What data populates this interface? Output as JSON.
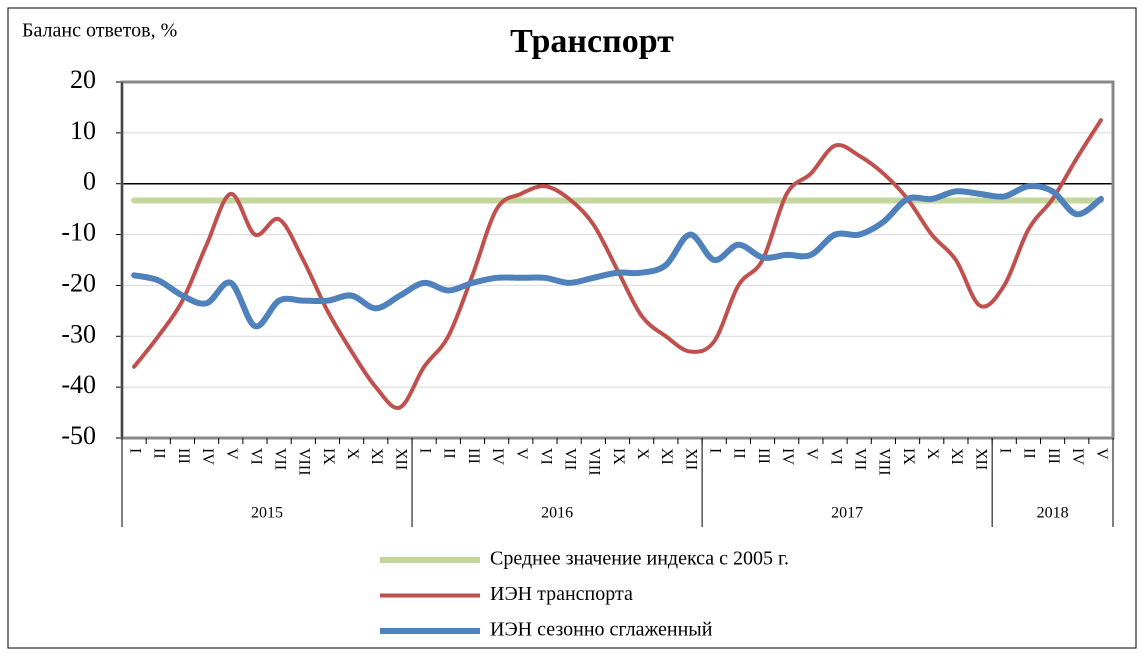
{
  "chart_data": {
    "type": "line",
    "title": "Транспорт",
    "ylabel": "Баланс ответов, %",
    "categories": [
      "I",
      "II",
      "III",
      "IV",
      "V",
      "VI",
      "VII",
      "VIII",
      "IX",
      "X",
      "XI",
      "XII",
      "I",
      "II",
      "III",
      "IV",
      "V",
      "VI",
      "VII",
      "VIII",
      "IX",
      "X",
      "XI",
      "XII",
      "I",
      "II",
      "III",
      "IV",
      "V",
      "VI",
      "VII",
      "VIII",
      "IX",
      "X",
      "XI",
      "XII",
      "I",
      "II",
      "III",
      "IV",
      "V"
    ],
    "years": [
      "2015",
      "2016",
      "2017",
      "2018"
    ],
    "series": [
      {
        "name": "Среднее значение индекса с 2005 г.",
        "color": "#c3d69b",
        "width": 6,
        "values": [
          -3.3,
          -3.3,
          -3.3,
          -3.3,
          -3.3,
          -3.3,
          -3.3,
          -3.3,
          -3.3,
          -3.3,
          -3.3,
          -3.3,
          -3.3,
          -3.3,
          -3.3,
          -3.3,
          -3.3,
          -3.3,
          -3.3,
          -3.3,
          -3.3,
          -3.3,
          -3.3,
          -3.3,
          -3.3,
          -3.3,
          -3.3,
          -3.3,
          -3.3,
          -3.3,
          -3.3,
          -3.3,
          -3.3,
          -3.3,
          -3.3,
          -3.3,
          -3.3,
          -3.3,
          -3.3,
          -3.3,
          -3.3
        ]
      },
      {
        "name": "ИЭН транспорта",
        "color": "#c0504d",
        "width": 4,
        "values": [
          -36,
          -30,
          -23,
          -12,
          -2,
          -10,
          -7,
          -15,
          -25,
          -33,
          -40,
          -44,
          -36,
          -30,
          -18,
          -5,
          -2,
          -0.5,
          -3,
          -8,
          -17,
          -26,
          -30,
          -33,
          -31,
          -20,
          -15,
          -2,
          2,
          7.5,
          5.5,
          2,
          -3,
          -10,
          -15,
          -24,
          -20,
          -9,
          -3,
          5,
          12.5
        ]
      },
      {
        "name": "ИЭН сезонно сглаженный",
        "color": "#4f81bd",
        "width": 6,
        "values": [
          -18,
          -19,
          -22,
          -23.5,
          -19.5,
          -28,
          -23,
          -23,
          -23,
          -22,
          -24.5,
          -22,
          -19.5,
          -21,
          -19.5,
          -18.5,
          -18.5,
          -18.5,
          -19.5,
          -18.5,
          -17.5,
          -17.5,
          -16,
          -10,
          -15,
          -12,
          -14.5,
          -14,
          -14,
          -10,
          -10,
          -7.5,
          -3,
          -3,
          -1.5,
          -2,
          -2.5,
          -0.5,
          -1.5,
          -6,
          -3
        ]
      }
    ],
    "ylim": [
      -50,
      20
    ],
    "yticks": [
      -50,
      -40,
      -30,
      -20,
      -10,
      0,
      10,
      20
    ],
    "grid": true
  }
}
